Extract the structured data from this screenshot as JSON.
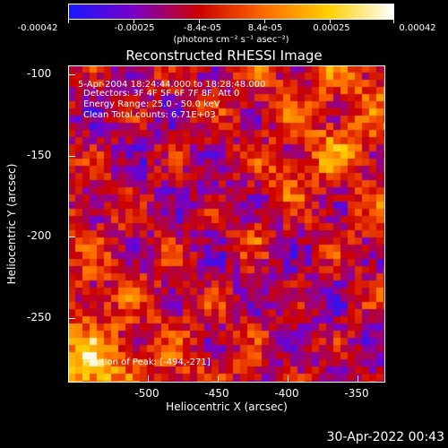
{
  "colorbar": {
    "ticks": [
      "-0.00042",
      "-0.00025",
      "-8.4e-05",
      "8.4e-05",
      "0.00025",
      "0.00042"
    ],
    "units": "(photons cm⁻² s⁻¹ asec⁻²)",
    "colors": [
      "#1a1aff",
      "#7a00c8",
      "#cc0000",
      "#ff6a00",
      "#ffd000",
      "#ffffff"
    ]
  },
  "plot": {
    "title": "Reconstructed RHESSI Image",
    "annotation_time": "5-Apr-2004 18:24:44.000 to 18:28:48.000",
    "annotation_detectors": "Detectors: 3F 4F 5F 6F 7F 8F, Att 0",
    "annotation_energy": "Energy Range: 25.0 - 50.0 keV",
    "annotation_clean": "Clean    Total counts: 6.71E+03",
    "annotation_peak": "Position of Peak: [-494,-271]",
    "xaxis_title": "Heliocentric X (arcsec)",
    "yaxis_title": "Heliocentric Y (arcsec)",
    "xticks": [
      "-500",
      "-450",
      "-400",
      "-350"
    ],
    "yticks": [
      "-100",
      "-150",
      "-200",
      "-250"
    ]
  },
  "footer": {
    "date": "30-Apr-2022 00:43"
  }
}
